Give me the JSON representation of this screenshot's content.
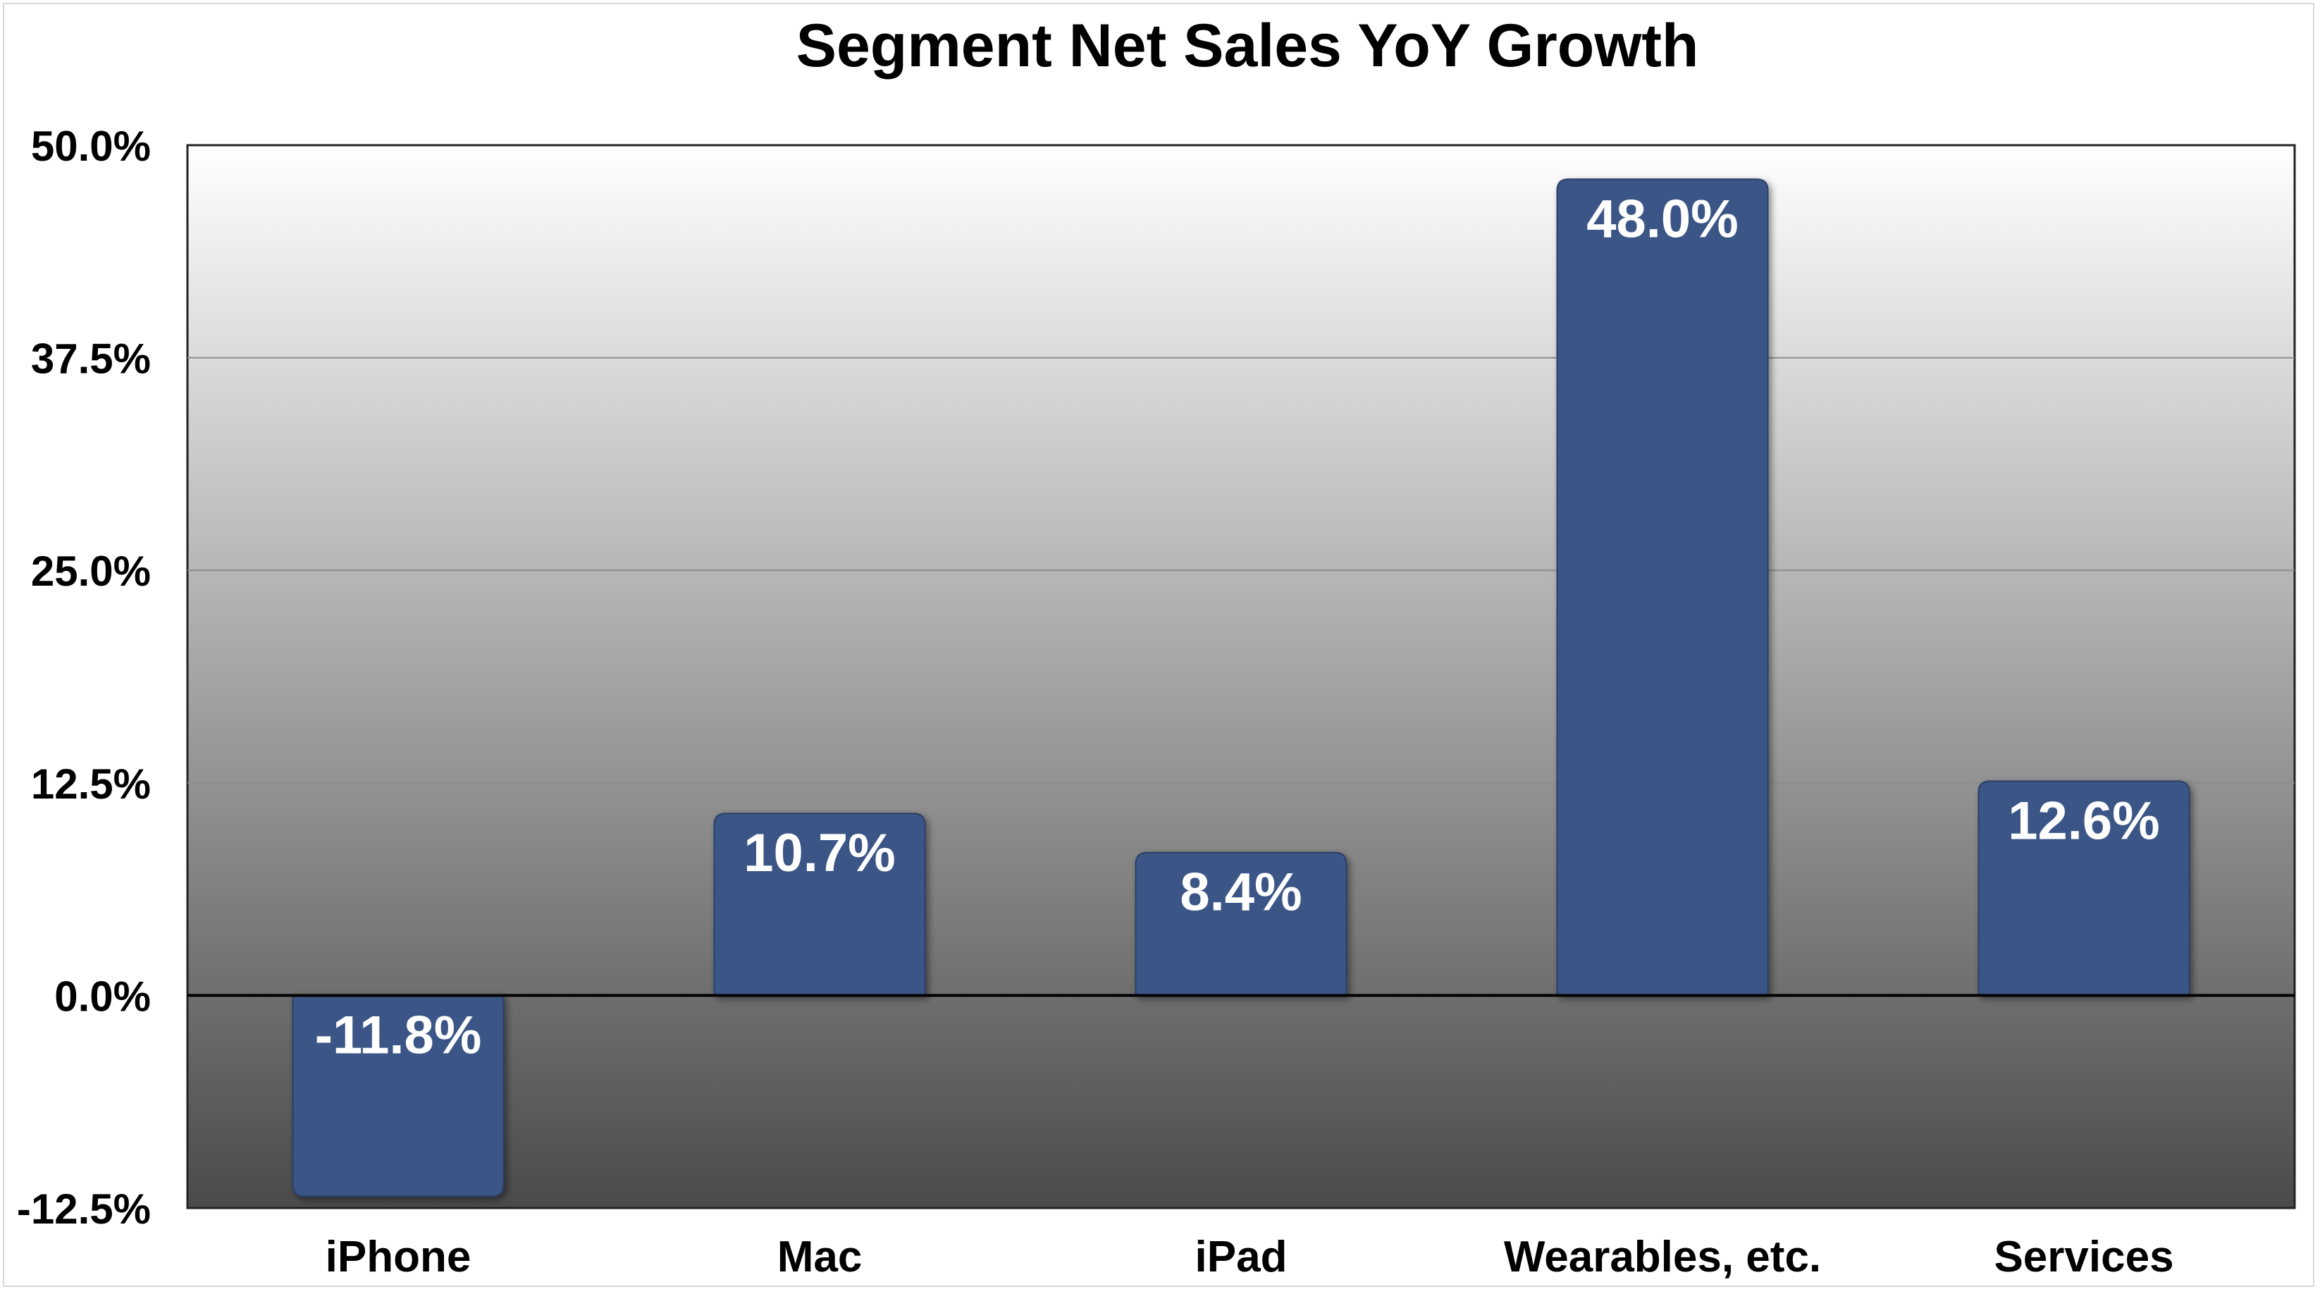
{
  "chart_data": {
    "type": "bar",
    "title": "Segment Net Sales YoY Growth",
    "xlabel": "",
    "ylabel": "",
    "categories": [
      "iPhone",
      "Mac",
      "iPad",
      "Wearables, etc.",
      "Services"
    ],
    "values": [
      -11.8,
      10.7,
      8.4,
      48.0,
      12.6
    ],
    "data_labels": [
      "-11.8%",
      "10.7%",
      "8.4%",
      "48.0%",
      "12.6%"
    ],
    "ylim": [
      -12.5,
      50.0
    ],
    "yticks": [
      -12.5,
      0.0,
      12.5,
      25.0,
      37.5,
      50.0
    ],
    "ytick_labels": [
      "-12.5%",
      "0.0%",
      "12.5%",
      "25.0%",
      "37.5%",
      "50.0%"
    ],
    "grid": true,
    "legend": "none",
    "colors": {
      "bar": "#3a5686",
      "bar_stroke": "#2a3f66",
      "plot_gradient_top": "#ffffff",
      "plot_gradient_bottom": "#4a4a4a",
      "gridline": "#8c8c8c",
      "zero_line": "#000000",
      "data_label": "#ffffff",
      "text": "#000000"
    }
  }
}
